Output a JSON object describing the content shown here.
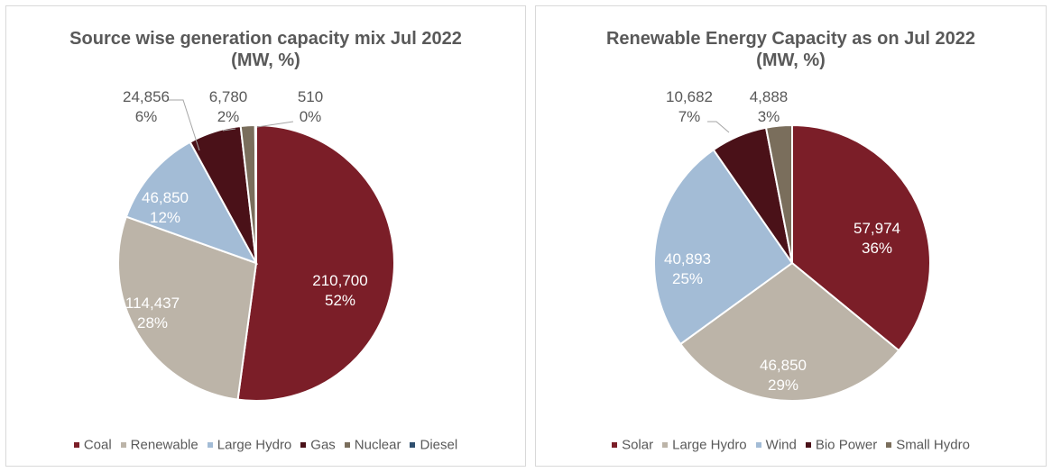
{
  "chart_data": [
    {
      "type": "pie",
      "title": "Source wise generation capacity mix Jul 2022 (MW, %)",
      "categories": [
        "Coal",
        "Renewable",
        "Large Hydro",
        "Gas",
        "Nuclear",
        "Diesel"
      ],
      "values": [
        210700,
        114437,
        46850,
        24856,
        6780,
        510
      ],
      "value_labels": [
        "210,700",
        "114,437",
        "46,850",
        "24,856",
        "6,780",
        "510"
      ],
      "percent_labels": [
        "52%",
        "28%",
        "12%",
        "6%",
        "2%",
        "0%"
      ],
      "colors": [
        "#7b1e28",
        "#bcb4a8",
        "#a3bcd6",
        "#4a1118",
        "#7a6e5c",
        "#2f4f6f"
      ],
      "legend_position": "bottom"
    },
    {
      "type": "pie",
      "title": "Renewable Energy Capacity as on Jul 2022 (MW, %)",
      "categories": [
        "Solar",
        "Large Hydro",
        "Wind",
        "Bio Power",
        "Small Hydro"
      ],
      "values": [
        57974,
        46850,
        40893,
        10682,
        4888
      ],
      "value_labels": [
        "57,974",
        "46,850",
        "40,893",
        "10,682",
        "4,888"
      ],
      "percent_labels": [
        "36%",
        "29%",
        "25%",
        "7%",
        "3%"
      ],
      "colors": [
        "#7b1e28",
        "#bcb4a8",
        "#a3bcd6",
        "#4a1118",
        "#7a6e5c"
      ],
      "legend_position": "bottom"
    }
  ]
}
